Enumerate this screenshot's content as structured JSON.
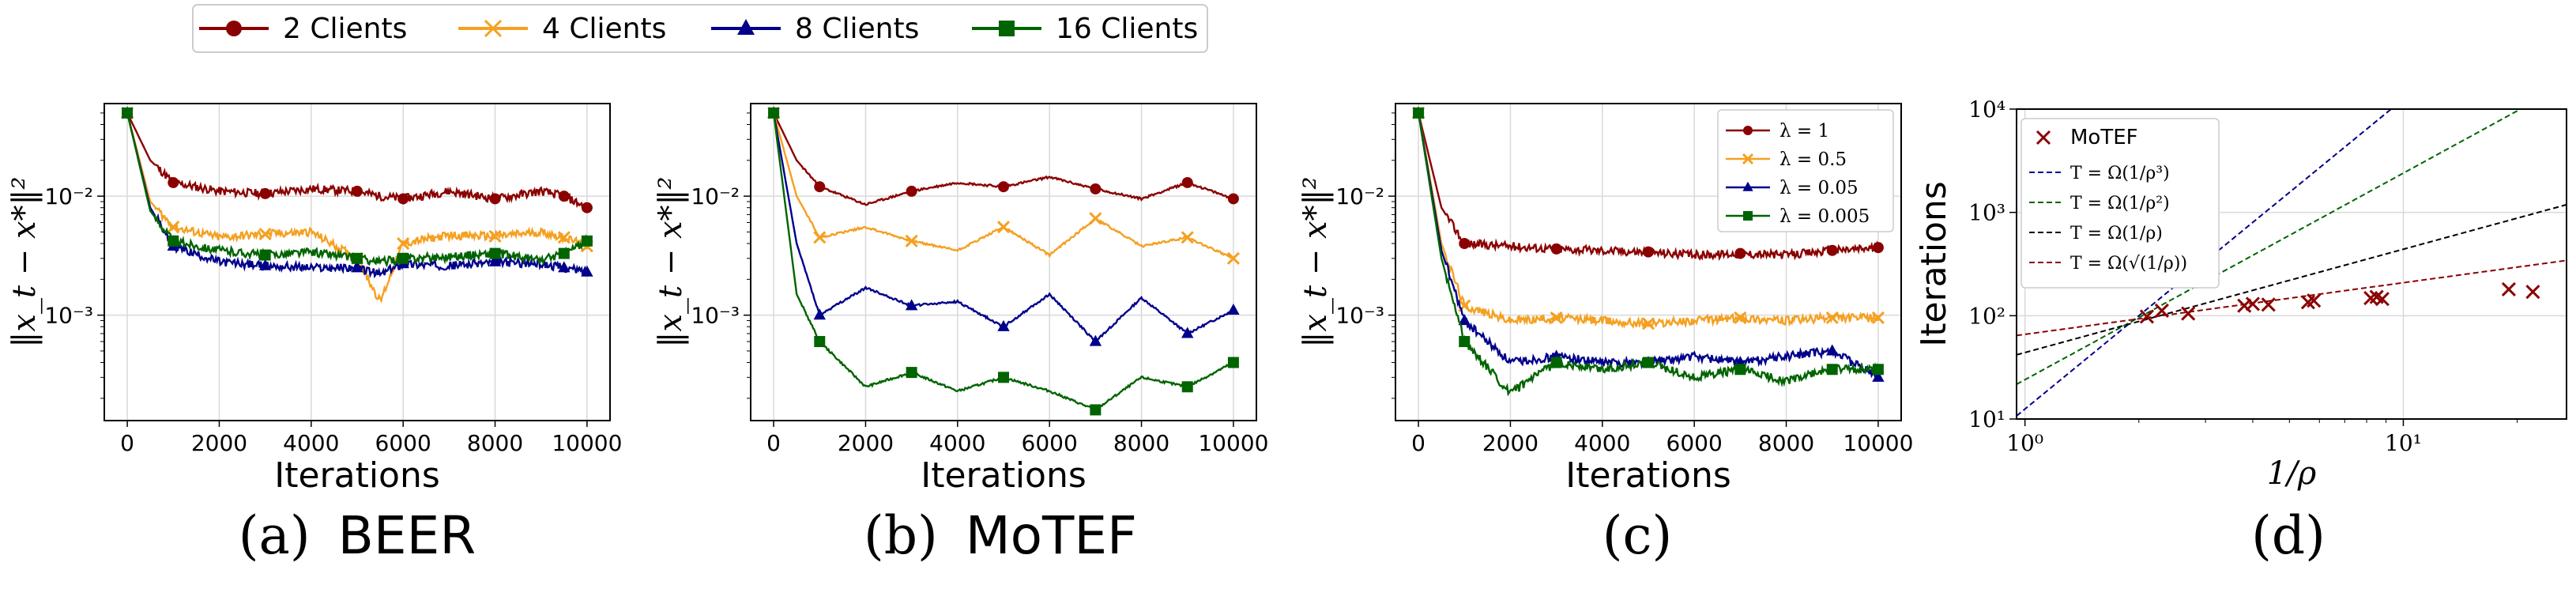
{
  "colors": {
    "dark_red": "#8b0000",
    "orange": "#f5a020",
    "navy": "#00008b",
    "green": "#006400",
    "grid": "#d9d9d9",
    "axis": "#000000"
  },
  "top_legend": [
    {
      "label": "2 Clients",
      "color": "#8b0000",
      "marker": "circle"
    },
    {
      "label": "4 Clients",
      "color": "#f5a020",
      "marker": "x"
    },
    {
      "label": "8 Clients",
      "color": "#00008b",
      "marker": "triangle"
    },
    {
      "label": "16 Clients",
      "color": "#006400",
      "marker": "square"
    }
  ],
  "captions": {
    "a_prefix": "(a)",
    "a_name": "BEER",
    "b_prefix": "(b)",
    "b_name": "MoTEF",
    "c": "(c)",
    "d": "(d)"
  },
  "chart_data": [
    {
      "type": "line",
      "panel": "a",
      "xlabel": "Iterations",
      "ylabel": "‖x_t − x*‖²",
      "yscale": "log",
      "xlim": [
        -500,
        10500
      ],
      "ylim": [
        0.00013,
        0.06
      ],
      "xticks": [
        "0",
        "2000",
        "4000",
        "6000",
        "8000",
        "10000"
      ],
      "yticks": [
        "10⁻²",
        "10⁻³"
      ],
      "grid": true,
      "legend": "figure top",
      "x": [
        0,
        500,
        1000,
        2000,
        3000,
        4000,
        5000,
        5500,
        6000,
        7000,
        8000,
        9000,
        9500,
        10000
      ],
      "series": [
        {
          "name": "2 Clients",
          "color": "#8b0000",
          "marker": "circle",
          "values": [
            0.05,
            0.02,
            0.013,
            0.011,
            0.0105,
            0.0115,
            0.011,
            0.01,
            0.0095,
            0.011,
            0.0095,
            0.011,
            0.01,
            0.008
          ]
        },
        {
          "name": "4 Clients",
          "color": "#f5a020",
          "marker": "x",
          "values": [
            0.05,
            0.009,
            0.0055,
            0.0045,
            0.0048,
            0.005,
            0.003,
            0.0013,
            0.004,
            0.0047,
            0.0046,
            0.005,
            0.0045,
            0.0038
          ]
        },
        {
          "name": "8 Clients",
          "color": "#00008b",
          "marker": "triangle",
          "values": [
            0.05,
            0.008,
            0.0038,
            0.0028,
            0.0026,
            0.0025,
            0.0025,
            0.0022,
            0.0027,
            0.0026,
            0.0028,
            0.0027,
            0.0025,
            0.0023
          ]
        },
        {
          "name": "16 Clients",
          "color": "#006400",
          "marker": "square",
          "values": [
            0.05,
            0.0075,
            0.0042,
            0.0035,
            0.0032,
            0.0034,
            0.003,
            0.0028,
            0.003,
            0.0031,
            0.0033,
            0.0029,
            0.0033,
            0.0042
          ]
        }
      ]
    },
    {
      "type": "line",
      "panel": "b",
      "xlabel": "Iterations",
      "ylabel": "‖x_t − x*‖²",
      "yscale": "log",
      "xlim": [
        -500,
        10500
      ],
      "ylim": [
        0.00013,
        0.06
      ],
      "xticks": [
        "0",
        "2000",
        "4000",
        "6000",
        "8000",
        "10000"
      ],
      "yticks": [
        "10⁻²",
        "10⁻³"
      ],
      "grid": true,
      "legend": "figure top",
      "x": [
        0,
        500,
        1000,
        2000,
        3000,
        4000,
        5000,
        6000,
        7000,
        8000,
        9000,
        10000
      ],
      "series": [
        {
          "name": "2 Clients",
          "color": "#8b0000",
          "marker": "circle",
          "values": [
            0.05,
            0.02,
            0.012,
            0.0085,
            0.011,
            0.013,
            0.012,
            0.0145,
            0.0115,
            0.0095,
            0.013,
            0.0095
          ]
        },
        {
          "name": "4 Clients",
          "color": "#f5a020",
          "marker": "x",
          "values": [
            0.05,
            0.01,
            0.0045,
            0.0055,
            0.0042,
            0.0035,
            0.0055,
            0.0032,
            0.0065,
            0.0038,
            0.0045,
            0.003
          ]
        },
        {
          "name": "8 Clients",
          "color": "#00008b",
          "marker": "triangle",
          "values": [
            0.05,
            0.004,
            0.001,
            0.0017,
            0.0012,
            0.0013,
            0.0008,
            0.0015,
            0.0006,
            0.0014,
            0.0007,
            0.0011
          ]
        },
        {
          "name": "16 Clients",
          "color": "#006400",
          "marker": "square",
          "values": [
            0.05,
            0.0015,
            0.0006,
            0.00025,
            0.00033,
            0.00023,
            0.0003,
            0.00023,
            0.00016,
            0.0003,
            0.00025,
            0.0004
          ]
        }
      ]
    },
    {
      "type": "line",
      "panel": "c",
      "xlabel": "Iterations",
      "ylabel": "‖x_t − x*‖²",
      "yscale": "log",
      "xlim": [
        -500,
        10500
      ],
      "ylim": [
        0.00013,
        0.06
      ],
      "xticks": [
        "0",
        "2000",
        "4000",
        "6000",
        "8000",
        "10000"
      ],
      "yticks": [
        "10⁻²",
        "10⁻³"
      ],
      "grid": true,
      "legend": "top-right",
      "x": [
        0,
        500,
        1000,
        2000,
        3000,
        4000,
        5000,
        6000,
        7000,
        8000,
        9000,
        10000
      ],
      "series": [
        {
          "name": "λ = 1",
          "color": "#8b0000",
          "marker": "circle",
          "values": [
            0.05,
            0.008,
            0.004,
            0.0038,
            0.0036,
            0.0035,
            0.0034,
            0.0032,
            0.0033,
            0.0032,
            0.0035,
            0.0037
          ]
        },
        {
          "name": "λ = 0.5",
          "color": "#f5a020",
          "marker": "x",
          "values": [
            0.05,
            0.004,
            0.0012,
            0.0009,
            0.00095,
            0.0009,
            0.00085,
            0.0009,
            0.00095,
            0.0009,
            0.00095,
            0.00095
          ]
        },
        {
          "name": "λ = 0.05",
          "color": "#00008b",
          "marker": "triangle",
          "values": [
            0.05,
            0.0035,
            0.0009,
            0.0004,
            0.00045,
            0.0004,
            0.0004,
            0.00045,
            0.0004,
            0.00045,
            0.0005,
            0.0003
          ]
        },
        {
          "name": "λ = 0.005",
          "color": "#006400",
          "marker": "square",
          "values": [
            0.05,
            0.003,
            0.0006,
            0.00022,
            0.0004,
            0.00035,
            0.0004,
            0.0003,
            0.00035,
            0.00028,
            0.00035,
            0.00035
          ]
        }
      ]
    },
    {
      "type": "scatter",
      "panel": "d",
      "xlabel": "1/ρ",
      "ylabel": "Iterations",
      "xscale": "log",
      "yscale": "log",
      "xlim": [
        0.95,
        27
      ],
      "ylim": [
        10,
        10000
      ],
      "xticks": [
        "10⁰",
        "10¹"
      ],
      "yticks": [
        "10¹",
        "10²",
        "10³",
        "10⁴"
      ],
      "grid": true,
      "legend": "top-left",
      "points": {
        "name": "MoTEF",
        "color": "#8b0000",
        "marker": "x",
        "x": [
          2.1,
          2.3,
          2.7,
          3.8,
          4.0,
          4.4,
          5.6,
          5.8,
          8.2,
          8.5,
          8.8,
          19.0,
          22.0
        ],
        "y": [
          98,
          112,
          105,
          125,
          130,
          128,
          135,
          140,
          148,
          152,
          145,
          180,
          170
        ]
      },
      "reference_lines": [
        {
          "name": "T = Ω(1/ρ³)",
          "color": "#00008b",
          "exponent": 3,
          "coef": 12.5
        },
        {
          "name": "T = Ω(1/ρ²)",
          "color": "#006400",
          "exponent": 2,
          "coef": 24
        },
        {
          "name": "T = Ω(1/ρ)",
          "color": "#000000",
          "exponent": 1,
          "coef": 44
        },
        {
          "name": "T = Ω(√(1/ρ))",
          "color": "#8b0000",
          "exponent": 0.5,
          "coef": 66
        }
      ]
    }
  ]
}
